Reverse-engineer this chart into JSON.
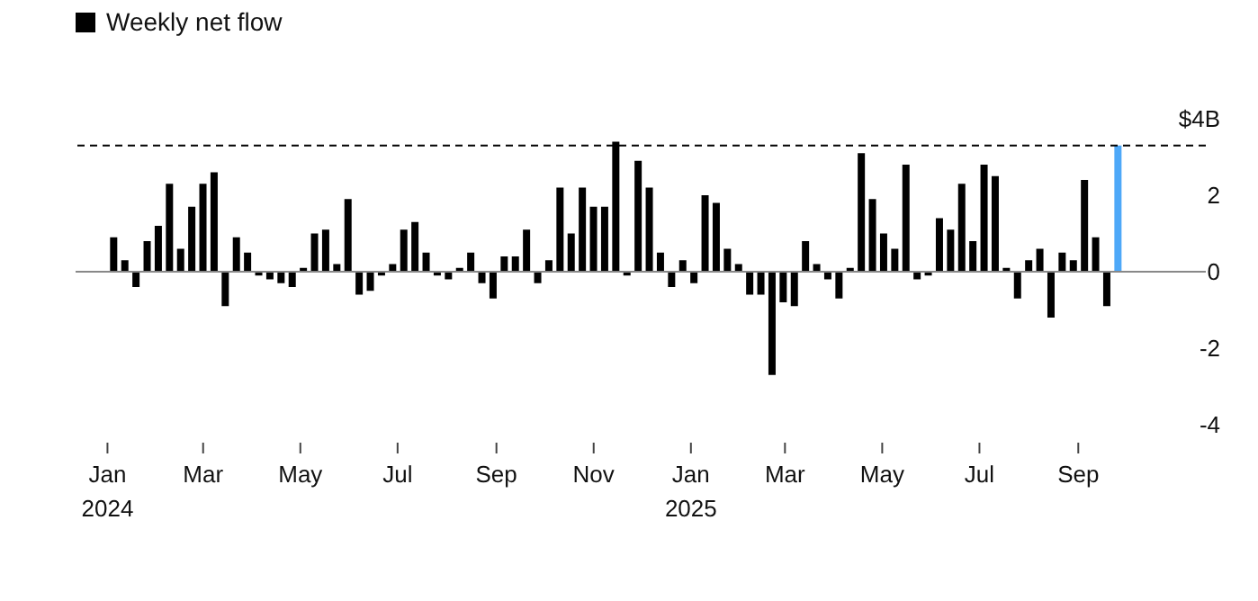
{
  "chart_data": {
    "type": "bar",
    "x": [
      "2024-01-05",
      "2024-01-12",
      "2024-01-19",
      "2024-01-26",
      "2024-02-02",
      "2024-02-09",
      "2024-02-16",
      "2024-02-23",
      "2024-03-01",
      "2024-03-08",
      "2024-03-15",
      "2024-03-22",
      "2024-03-29",
      "2024-04-05",
      "2024-04-12",
      "2024-04-19",
      "2024-04-26",
      "2024-05-03",
      "2024-05-10",
      "2024-05-17",
      "2024-05-24",
      "2024-05-31",
      "2024-06-07",
      "2024-06-14",
      "2024-06-21",
      "2024-06-28",
      "2024-07-05",
      "2024-07-12",
      "2024-07-19",
      "2024-07-26",
      "2024-08-02",
      "2024-08-09",
      "2024-08-16",
      "2024-08-23",
      "2024-08-30",
      "2024-09-06",
      "2024-09-13",
      "2024-09-20",
      "2024-09-27",
      "2024-10-04",
      "2024-10-11",
      "2024-10-18",
      "2024-10-25",
      "2024-11-01",
      "2024-11-08",
      "2024-11-15",
      "2024-11-22",
      "2024-11-29",
      "2024-12-06",
      "2024-12-13",
      "2024-12-20",
      "2024-12-27",
      "2025-01-03",
      "2025-01-10",
      "2025-01-17",
      "2025-01-24",
      "2025-01-31",
      "2025-02-07",
      "2025-02-14",
      "2025-02-21",
      "2025-02-28",
      "2025-03-07",
      "2025-03-14",
      "2025-03-21",
      "2025-03-28",
      "2025-04-04",
      "2025-04-11",
      "2025-04-18",
      "2025-04-25",
      "2025-05-02",
      "2025-05-09",
      "2025-05-16",
      "2025-05-23",
      "2025-05-30",
      "2025-06-06",
      "2025-06-13",
      "2025-06-20",
      "2025-06-27",
      "2025-07-04",
      "2025-07-11",
      "2025-07-18",
      "2025-07-25",
      "2025-08-01",
      "2025-08-08",
      "2025-08-15",
      "2025-08-22",
      "2025-08-29",
      "2025-09-05",
      "2025-09-12",
      "2025-09-19",
      "2025-09-26"
    ],
    "series": [
      {
        "name": "Weekly net flow",
        "color": "#000000",
        "colors": [
          "#000000",
          "#000000",
          "#000000",
          "#000000",
          "#000000",
          "#000000",
          "#000000",
          "#000000",
          "#000000",
          "#000000",
          "#000000",
          "#000000",
          "#000000",
          "#000000",
          "#000000",
          "#000000",
          "#000000",
          "#000000",
          "#000000",
          "#000000",
          "#000000",
          "#000000",
          "#000000",
          "#000000",
          "#000000",
          "#000000",
          "#000000",
          "#000000",
          "#000000",
          "#000000",
          "#000000",
          "#000000",
          "#000000",
          "#000000",
          "#000000",
          "#000000",
          "#000000",
          "#000000",
          "#000000",
          "#000000",
          "#000000",
          "#000000",
          "#000000",
          "#000000",
          "#000000",
          "#000000",
          "#000000",
          "#000000",
          "#000000",
          "#000000",
          "#000000",
          "#000000",
          "#000000",
          "#000000",
          "#000000",
          "#000000",
          "#000000",
          "#000000",
          "#000000",
          "#000000",
          "#000000",
          "#000000",
          "#000000",
          "#000000",
          "#000000",
          "#000000",
          "#000000",
          "#000000",
          "#000000",
          "#000000",
          "#000000",
          "#000000",
          "#000000",
          "#000000",
          "#000000",
          "#000000",
          "#000000",
          "#000000",
          "#000000",
          "#000000",
          "#000000",
          "#000000",
          "#000000",
          "#000000",
          "#000000",
          "#000000",
          "#000000",
          "#000000",
          "#000000",
          "#000000",
          "#4ea8f8"
        ],
        "values": [
          0.9,
          0.3,
          -0.4,
          0.8,
          1.2,
          2.3,
          0.6,
          1.7,
          2.3,
          2.6,
          -0.9,
          0.9,
          0.5,
          -0.1,
          -0.2,
          -0.3,
          -0.4,
          0.1,
          1.0,
          1.1,
          0.2,
          1.9,
          -0.6,
          -0.5,
          -0.1,
          0.2,
          1.1,
          1.3,
          0.5,
          -0.1,
          -0.2,
          0.1,
          0.5,
          -0.3,
          -0.7,
          0.4,
          0.4,
          1.1,
          -0.3,
          0.3,
          2.2,
          1.0,
          2.2,
          1.7,
          1.7,
          3.4,
          -0.1,
          2.9,
          2.2,
          0.5,
          -0.4,
          0.3,
          -0.3,
          2.0,
          1.8,
          0.6,
          0.2,
          -0.6,
          -0.6,
          -2.7,
          -0.8,
          -0.9,
          0.8,
          0.2,
          -0.2,
          -0.7,
          0.1,
          3.1,
          1.9,
          1.0,
          0.6,
          2.8,
          -0.2,
          -0.1,
          1.4,
          1.1,
          2.3,
          0.8,
          2.8,
          2.5,
          0.1,
          -0.7,
          0.3,
          0.6,
          -1.2,
          0.5,
          0.3,
          2.4,
          0.9,
          -0.9,
          3.3
        ]
      }
    ],
    "xlim": [
      "2023-12-12",
      "2025-11-20"
    ],
    "xticks": [
      {
        "value": "2024-01-01",
        "label": "Jan\n2024"
      },
      {
        "value": "2024-03-01",
        "label": "Mar"
      },
      {
        "value": "2024-05-01",
        "label": "May"
      },
      {
        "value": "2024-07-01",
        "label": "Jul"
      },
      {
        "value": "2024-09-01",
        "label": "Sep"
      },
      {
        "value": "2024-11-01",
        "label": "Nov"
      },
      {
        "value": "2025-01-01",
        "label": "Jan\n2025"
      },
      {
        "value": "2025-03-01",
        "label": "Mar"
      },
      {
        "value": "2025-05-01",
        "label": "May"
      },
      {
        "value": "2025-07-01",
        "label": "Jul"
      },
      {
        "value": "2025-09-01",
        "label": "Sep"
      }
    ],
    "ylim": [
      -4,
      4
    ],
    "yticks": [
      {
        "value": 4,
        "label": "$4B"
      },
      2,
      0,
      -2,
      -4
    ],
    "ref_lines": [
      {
        "axis": "y",
        "value": 3.3,
        "color": "#000000",
        "line_style": "dashed"
      },
      {
        "axis": "y",
        "value": 0,
        "color": "#888888",
        "line_style": "solid"
      }
    ],
    "legend": "top left"
  }
}
